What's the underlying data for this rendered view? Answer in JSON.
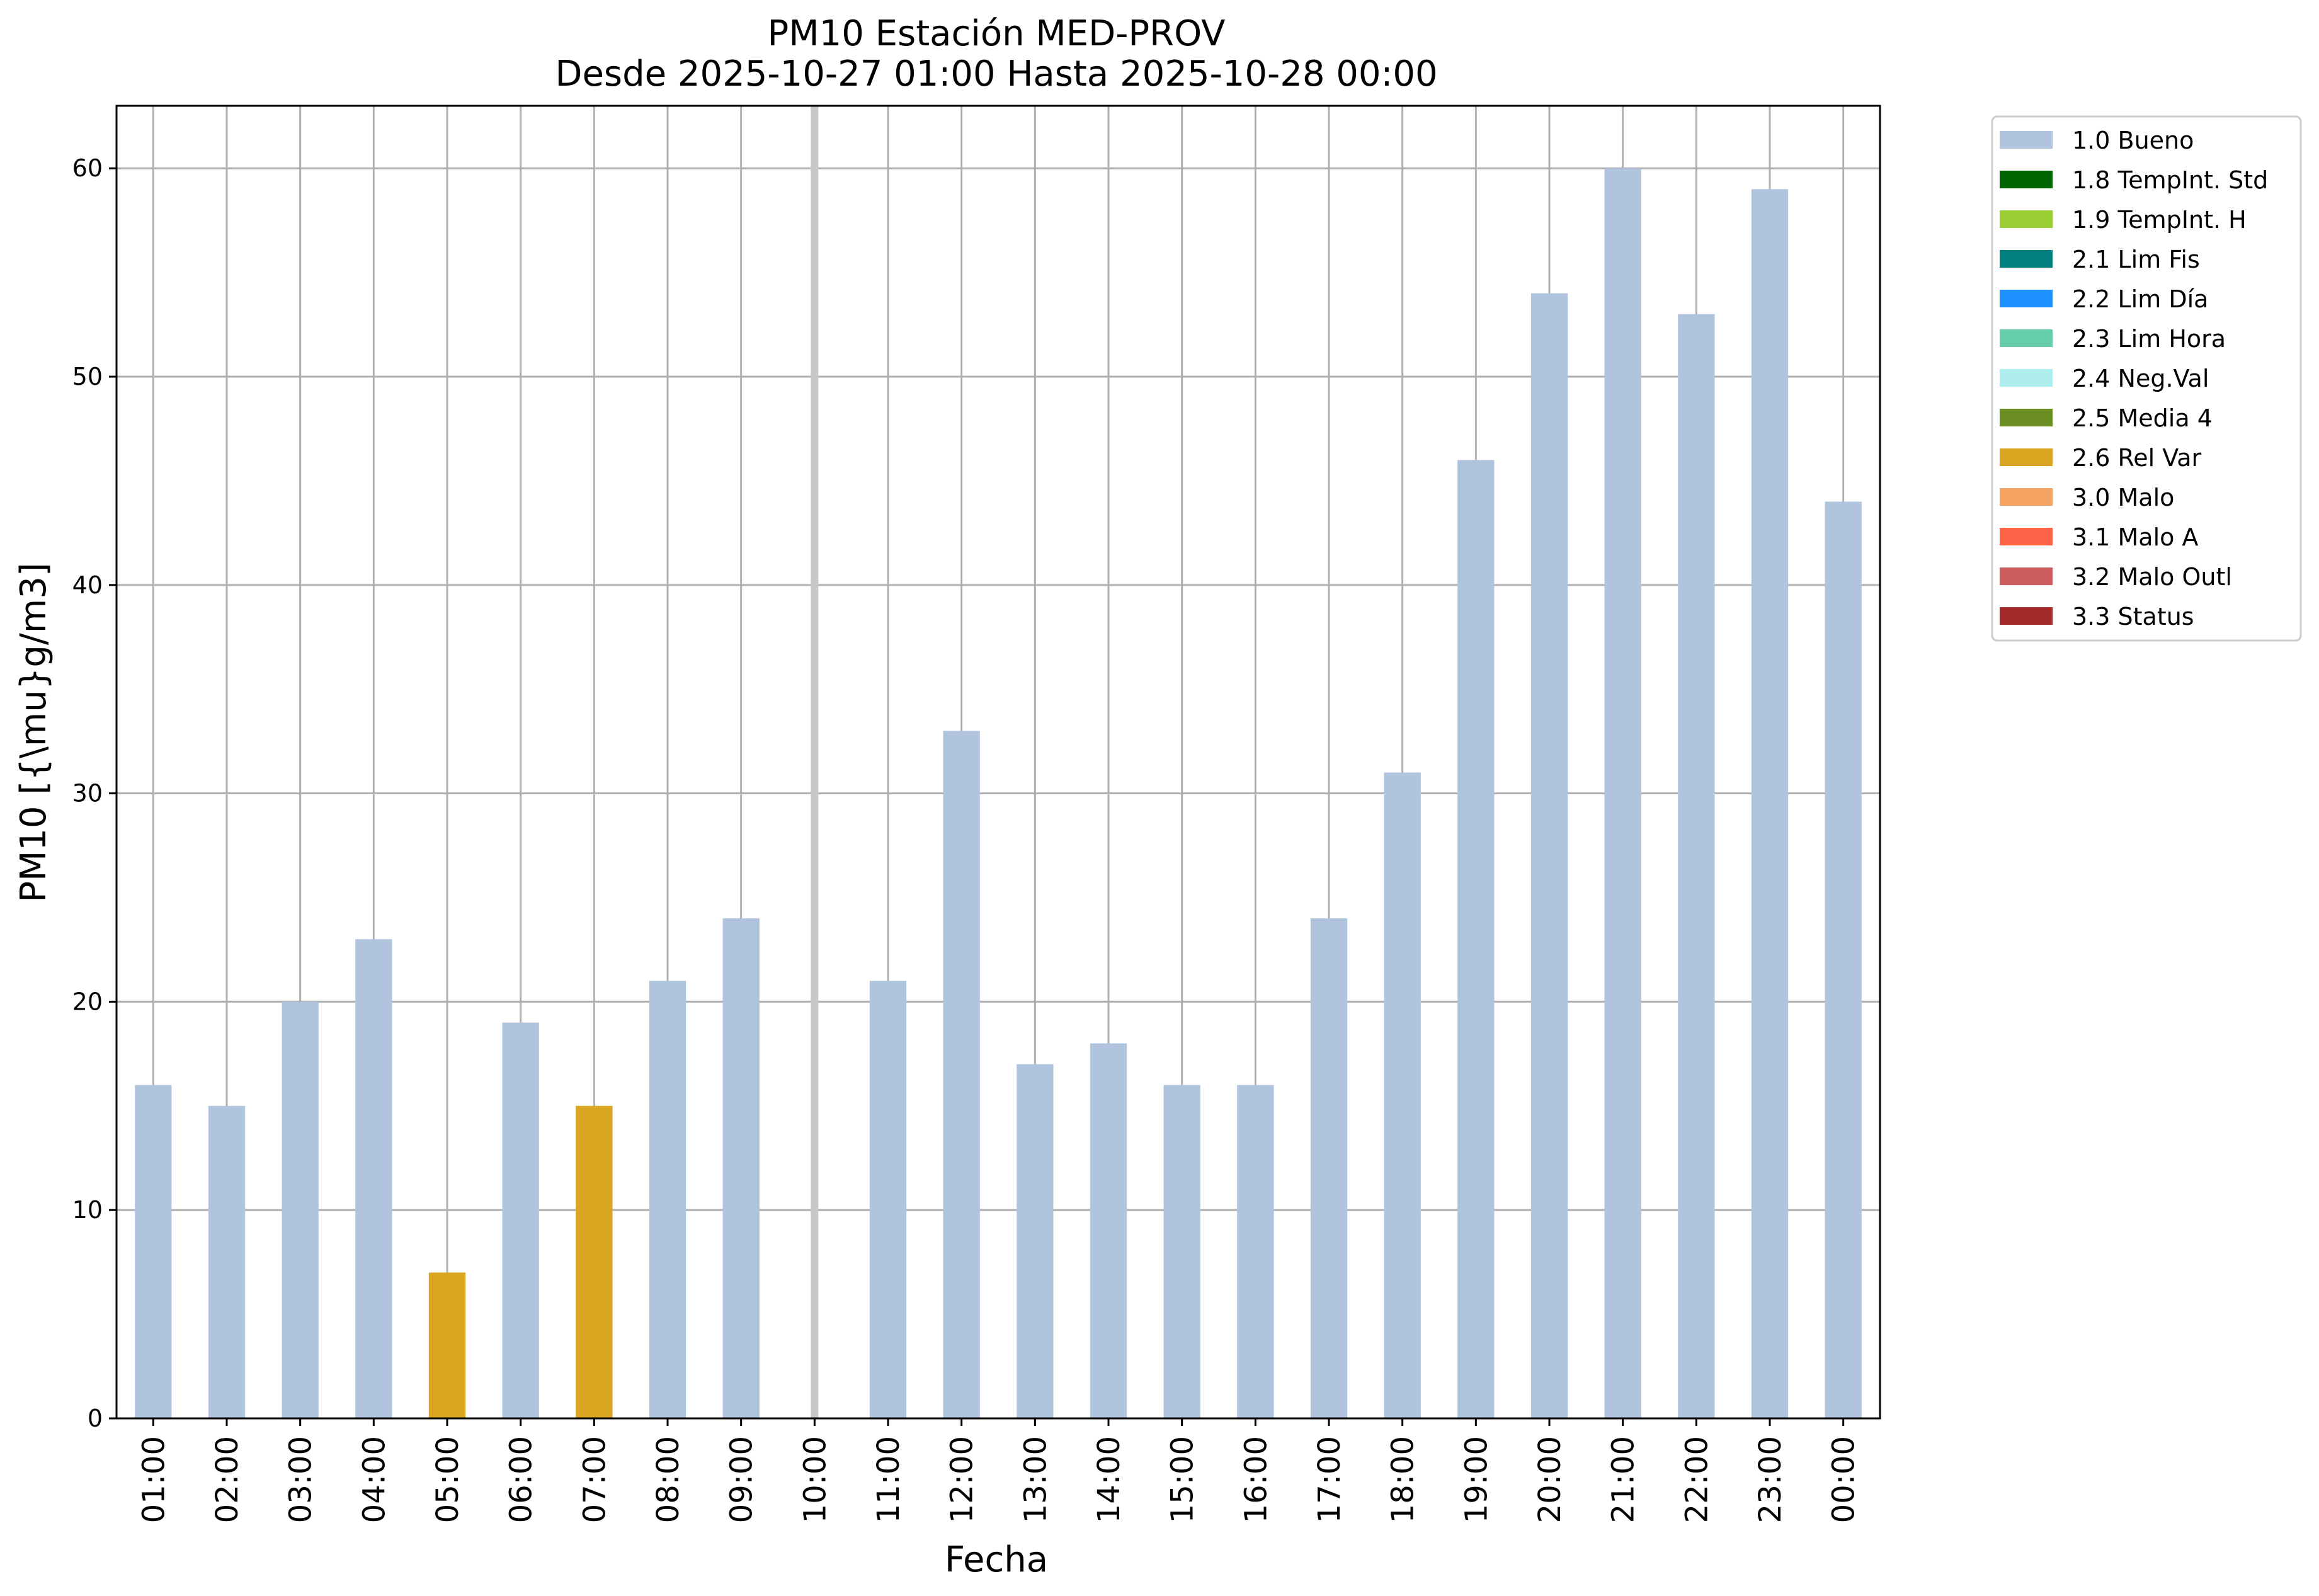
{
  "chart_data": {
    "type": "bar",
    "title": "PM10 Estación MED-PROV",
    "subtitle": "Desde 2025-10-27 01:00 Hasta 2025-10-28 00:00",
    "xlabel": "Fecha",
    "ylabel": "PM10 [{\\mu}g/m3]",
    "ylim": [
      0,
      63
    ],
    "yticks": [
      0,
      10,
      20,
      30,
      40,
      50,
      60
    ],
    "grid": true,
    "legend_position": "outside-top-right",
    "categories": [
      "01:00",
      "02:00",
      "03:00",
      "04:00",
      "05:00",
      "06:00",
      "07:00",
      "08:00",
      "09:00",
      "10:00",
      "11:00",
      "12:00",
      "13:00",
      "14:00",
      "15:00",
      "16:00",
      "17:00",
      "18:00",
      "19:00",
      "20:00",
      "21:00",
      "22:00",
      "23:00",
      "00:00"
    ],
    "values": [
      16,
      15,
      20,
      23,
      7,
      19,
      15,
      21,
      24,
      null,
      21,
      33,
      17,
      18,
      16,
      16,
      24,
      31,
      46,
      54,
      60,
      53,
      59,
      44
    ],
    "flags": [
      "1.0 Bueno",
      "1.0 Bueno",
      "1.0 Bueno",
      "1.0 Bueno",
      "2.6 Rel Var",
      "1.0 Bueno",
      "2.6 Rel Var",
      "1.0 Bueno",
      "1.0 Bueno",
      null,
      "1.0 Bueno",
      "1.0 Bueno",
      "1.0 Bueno",
      "1.0 Bueno",
      "1.0 Bueno",
      "1.0 Bueno",
      "1.0 Bueno",
      "1.0 Bueno",
      "1.0 Bueno",
      "1.0 Bueno",
      "1.0 Bueno",
      "1.0 Bueno",
      "1.0 Bueno",
      "1.0 Bueno"
    ],
    "missing_marker_category": "10:00",
    "missing_marker_color": "#c8c8c8",
    "legend": [
      {
        "label": "1.0 Bueno",
        "color": "#b0c4de"
      },
      {
        "label": "1.8 TempInt. Std",
        "color": "#006400"
      },
      {
        "label": "1.9 TempInt. H",
        "color": "#9acd32"
      },
      {
        "label": "2.1 Lim Fis",
        "color": "#008080"
      },
      {
        "label": "2.2 Lim Día",
        "color": "#1e90ff"
      },
      {
        "label": "2.3 Lim Hora",
        "color": "#66cdaa"
      },
      {
        "label": "2.4 Neg.Val",
        "color": "#afeeee"
      },
      {
        "label": "2.5 Media 4",
        "color": "#6b8e23"
      },
      {
        "label": "2.6 Rel Var",
        "color": "#daa520"
      },
      {
        "label": "3.0 Malo",
        "color": "#f4a460"
      },
      {
        "label": "3.1 Malo A",
        "color": "#ff6347"
      },
      {
        "label": "3.2 Malo Outl",
        "color": "#cd5c5c"
      },
      {
        "label": "3.3 Status",
        "color": "#a52a2a"
      }
    ]
  }
}
